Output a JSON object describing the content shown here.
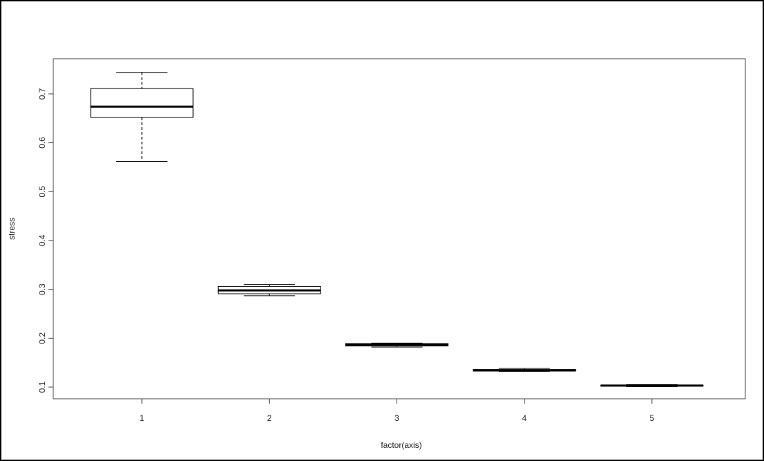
{
  "chart_data": {
    "type": "box",
    "xlabel": "factor(axis)",
    "ylabel": "stress",
    "categories": [
      "1",
      "2",
      "3",
      "4",
      "5"
    ],
    "boxes": [
      {
        "min": 0.562,
        "q1": 0.652,
        "median": 0.674,
        "q3": 0.711,
        "max": 0.744
      },
      {
        "min": 0.287,
        "q1": 0.291,
        "median": 0.298,
        "q3": 0.306,
        "max": 0.31
      },
      {
        "min": 0.182,
        "q1": 0.184,
        "median": 0.187,
        "q3": 0.189,
        "max": 0.19
      },
      {
        "min": 0.132,
        "q1": 0.133,
        "median": 0.134,
        "q3": 0.136,
        "max": 0.138
      },
      {
        "min": 0.101,
        "q1": 0.102,
        "median": 0.103,
        "q3": 0.104,
        "max": 0.105
      }
    ],
    "color": "#000000",
    "ylim": [
      0.076,
      0.772
    ],
    "yticks": [
      0.1,
      0.2,
      0.3,
      0.4,
      0.5,
      0.6,
      0.7
    ]
  }
}
